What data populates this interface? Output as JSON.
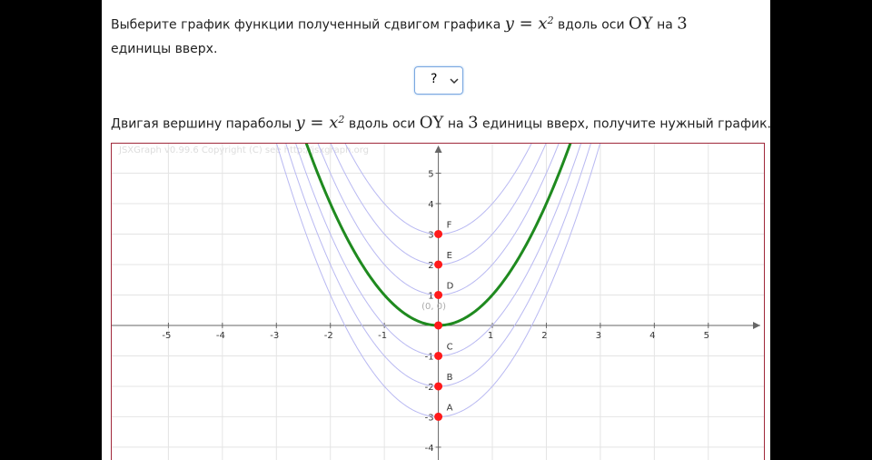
{
  "question": {
    "before": "Выберите график функции полученный сдвигом графика",
    "formula": "y = x",
    "power": "2",
    "mid": "вдоль оси",
    "axis": "OY",
    "on": "на",
    "amount": 3,
    "after": "единицы вверх."
  },
  "select": {
    "value": "?"
  },
  "hint": {
    "before": "Двигая вершину параболы",
    "formula": "y = x",
    "power": "2",
    "mid": "вдоль оси",
    "axis": "OY",
    "on": "на",
    "amount": 3,
    "after": "единицы вверх, получите нужный график."
  },
  "graph": {
    "watermark": "JSXGraph v0.99.6 Copyright (C) see http://jsxgraph.org",
    "xlim": [
      -6.05,
      6.03
    ],
    "ylim": [
      -4.45,
      5.97
    ],
    "xticks": [
      -5,
      -4,
      -3,
      -2,
      -1,
      1,
      2,
      3,
      4,
      5
    ],
    "yticks": [
      -4,
      -3,
      -2,
      -1,
      1,
      2,
      3,
      4,
      5
    ],
    "main_curve": {
      "shift": 0,
      "color": "#1f8a1f"
    },
    "curves": {
      "color": "#b9b9f2",
      "shifts": [
        -3,
        -2,
        -1,
        1,
        2,
        3
      ]
    },
    "point_color": "#ff1a1a",
    "points": [
      {
        "label": "A",
        "y": -3
      },
      {
        "label": "B",
        "y": -2
      },
      {
        "label": "C",
        "y": -1
      },
      {
        "label": "D",
        "y": 1
      },
      {
        "label": "E",
        "y": 2
      },
      {
        "label": "F",
        "y": 3
      }
    ],
    "origin_point": {
      "label": "(0, 0)",
      "x": 0,
      "y": 0
    }
  }
}
